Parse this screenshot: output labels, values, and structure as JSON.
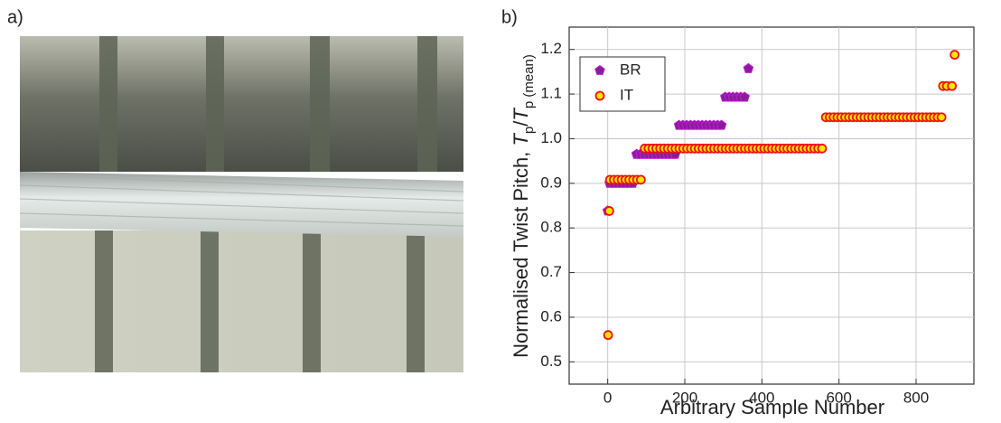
{
  "panel_labels": {
    "a": "a)",
    "b": "b)"
  },
  "chart_data": {
    "type": "scatter",
    "xlabel": "Arbitrary Sample Number",
    "ylabel": [
      "Normalised Twist Pitch, ",
      "T",
      "p",
      "/",
      "T",
      "p (mean)"
    ],
    "xlim": [
      -100,
      950
    ],
    "ylim": [
      0.45,
      1.25
    ],
    "xticks": [
      0,
      200,
      400,
      600,
      800
    ],
    "yticks": [
      0.5,
      0.6,
      0.7,
      0.8,
      0.9,
      {
        "value": 1,
        "label": "1.0"
      },
      1.1,
      1.2
    ],
    "grid": true,
    "legend": "upper left",
    "series": [
      {
        "name": "BR",
        "color": "#8b1a9e",
        "marker": "pentagon",
        "x": [
          0,
          5,
          15,
          25,
          35,
          45,
          55,
          65,
          75,
          85,
          95,
          105,
          115,
          125,
          135,
          145,
          155,
          165,
          175,
          185,
          195,
          205,
          215,
          225,
          235,
          245,
          255,
          265,
          275,
          285,
          295,
          305,
          315,
          325,
          335,
          345,
          355,
          365
        ],
        "values": [
          0.838,
          0.9,
          0.9,
          0.9,
          0.9,
          0.9,
          0.9,
          0.9,
          0.965,
          0.965,
          0.965,
          0.965,
          0.965,
          0.965,
          0.965,
          0.965,
          0.965,
          0.965,
          0.965,
          1.03,
          1.03,
          1.03,
          1.03,
          1.03,
          1.03,
          1.03,
          1.03,
          1.03,
          1.03,
          1.03,
          1.03,
          1.093,
          1.093,
          1.093,
          1.093,
          1.093,
          1.093,
          1.157
        ]
      },
      {
        "name": "IT",
        "color": "#ee1111",
        "marker": "circle",
        "x": [
          1,
          4,
          6,
          16,
          26,
          36,
          46,
          56,
          66,
          76,
          86,
          96,
          106,
          116,
          126,
          136,
          146,
          156,
          166,
          176,
          186,
          196,
          206,
          216,
          226,
          236,
          246,
          256,
          266,
          276,
          286,
          296,
          306,
          316,
          326,
          336,
          346,
          356,
          366,
          376,
          386,
          396,
          406,
          416,
          426,
          436,
          446,
          456,
          466,
          476,
          486,
          496,
          506,
          516,
          526,
          536,
          546,
          556,
          566,
          576,
          586,
          596,
          606,
          616,
          626,
          636,
          646,
          656,
          666,
          676,
          686,
          696,
          706,
          716,
          726,
          736,
          746,
          756,
          766,
          776,
          786,
          796,
          806,
          816,
          826,
          836,
          846,
          856,
          866,
          870,
          880,
          893,
          900
        ],
        "values": [
          0.56,
          0.838,
          0.908,
          0.908,
          0.908,
          0.908,
          0.908,
          0.908,
          0.908,
          0.908,
          0.908,
          0.978,
          0.978,
          0.978,
          0.978,
          0.978,
          0.978,
          0.978,
          0.978,
          0.978,
          0.978,
          0.978,
          0.978,
          0.978,
          0.978,
          0.978,
          0.978,
          0.978,
          0.978,
          0.978,
          0.978,
          0.978,
          0.978,
          0.978,
          0.978,
          0.978,
          0.978,
          0.978,
          0.978,
          0.978,
          0.978,
          0.978,
          0.978,
          0.978,
          0.978,
          0.978,
          0.978,
          0.978,
          0.978,
          0.978,
          0.978,
          0.978,
          0.978,
          0.978,
          0.978,
          0.978,
          0.978,
          0.978,
          1.048,
          1.048,
          1.048,
          1.048,
          1.048,
          1.048,
          1.048,
          1.048,
          1.048,
          1.048,
          1.048,
          1.048,
          1.048,
          1.048,
          1.048,
          1.048,
          1.048,
          1.048,
          1.048,
          1.048,
          1.048,
          1.048,
          1.048,
          1.048,
          1.048,
          1.048,
          1.048,
          1.048,
          1.048,
          1.048,
          1.048,
          1.118,
          1.118,
          1.118,
          1.188
        ]
      }
    ]
  }
}
